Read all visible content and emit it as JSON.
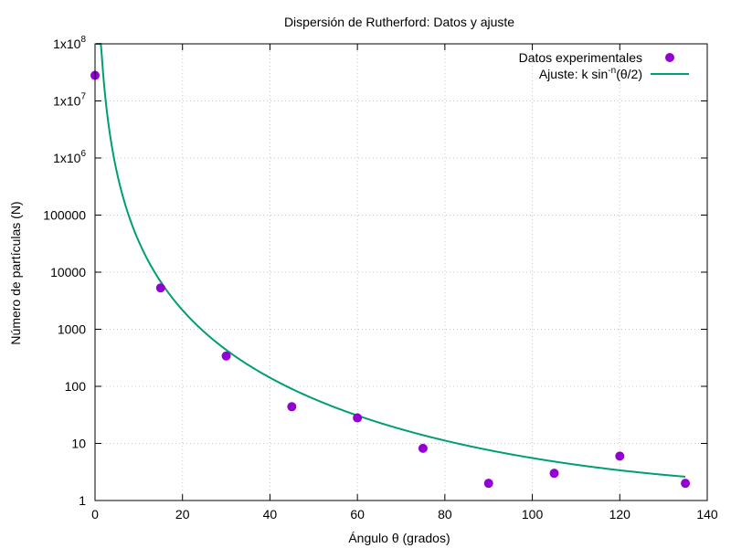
{
  "chart_data": {
    "type": "scatter",
    "title": "Dispersión de Rutherford: Datos y ajuste",
    "xlabel": "Ángulo θ (grados)",
    "ylabel": "Número de partículas (N)",
    "xlim": [
      0,
      140
    ],
    "ylim": [
      1,
      100000000
    ],
    "yscale": "log",
    "grid": true,
    "legend_position": "top-right",
    "x_ticks": [
      0,
      20,
      40,
      60,
      80,
      100,
      120,
      140
    ],
    "x_tick_labels": [
      "0",
      "20",
      "40",
      "60",
      "80",
      "100",
      "120",
      "140"
    ],
    "y_ticks": [
      1,
      10,
      100,
      1000,
      10000,
      100000,
      1000000,
      10000000,
      100000000
    ],
    "y_tick_labels": [
      {
        "base": "1"
      },
      {
        "base": "10"
      },
      {
        "base": "100"
      },
      {
        "base": "1000"
      },
      {
        "base": "10000"
      },
      {
        "base": "100000"
      },
      {
        "base": "1x10",
        "exp": "6"
      },
      {
        "base": "1x10",
        "exp": "7"
      },
      {
        "base": "1x10",
        "exp": "8"
      }
    ],
    "series": [
      {
        "name": "Datos experimentales",
        "kind": "points",
        "color": "#9400d3",
        "x": [
          0,
          15,
          30,
          45,
          60,
          75,
          90,
          105,
          120,
          135
        ],
        "y": [
          28000000,
          5300,
          340,
          44,
          28,
          8.2,
          2,
          3,
          6,
          2
        ]
      },
      {
        "name": "Ajuste: k sin",
        "name_sup": "-n",
        "name_tail": "(θ/2)",
        "kind": "line",
        "color": "#009e73",
        "function": {
          "k": 1.9,
          "n": 4.02
        }
      }
    ]
  }
}
